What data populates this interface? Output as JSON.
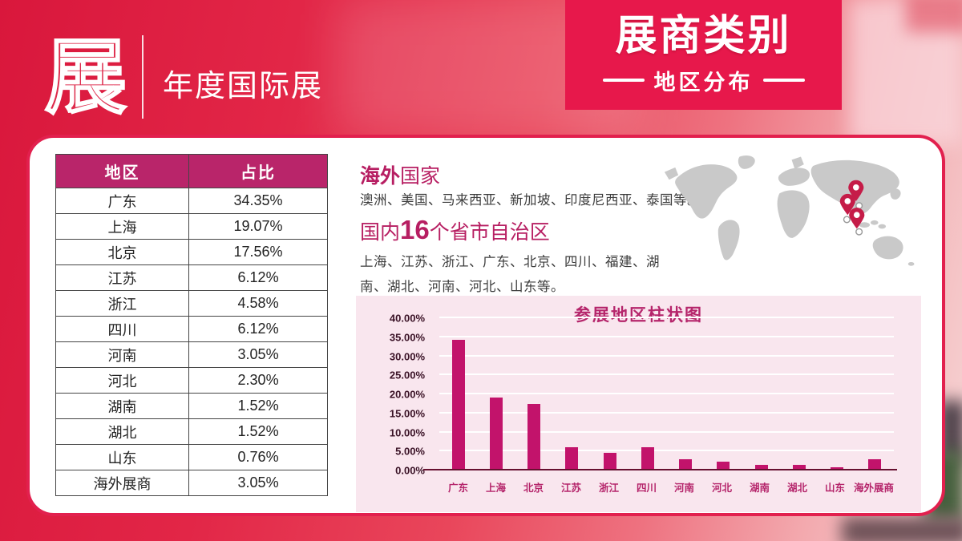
{
  "header": {
    "logo_char": "展",
    "event_title": "年度国际展"
  },
  "banner": {
    "title": "展商类别",
    "subtitle": "地区分布"
  },
  "table": {
    "columns": [
      "地区",
      "占比"
    ],
    "rows": [
      [
        "广东",
        "34.35%"
      ],
      [
        "上海",
        "19.07%"
      ],
      [
        "北京",
        "17.56%"
      ],
      [
        "江苏",
        "6.12%"
      ],
      [
        "浙江",
        "4.58%"
      ],
      [
        "四川",
        "6.12%"
      ],
      [
        "河南",
        "3.05%"
      ],
      [
        "河北",
        "2.30%"
      ],
      [
        "湖南",
        "1.52%"
      ],
      [
        "湖北",
        "1.52%"
      ],
      [
        "山东",
        "0.76%"
      ],
      [
        "海外展商",
        "3.05%"
      ]
    ]
  },
  "overseas": {
    "heading_accent": "海外",
    "heading_rest": "国家",
    "body": "澳洲、美国、马来西亚、新加坡、印度尼西亚、泰国等。"
  },
  "domestic": {
    "heading_prefix": "国内",
    "heading_count": "16",
    "heading_suffix": "个省市自治区",
    "body": "上海、江苏、浙江、广东、北京、四川、福建、湖南、湖北、河南、河北、山东等。"
  },
  "map": {
    "icon": "world-map",
    "pin_icon": "location-pin-icon"
  },
  "colors": {
    "accent_red": "#e7184b",
    "magenta_bar": "#c2136b",
    "table_header_bg": "#b9256a",
    "heading_magenta": "#b71e62",
    "chart_bg": "#f9e6ee",
    "map_gray": "#c9c9c9"
  },
  "chart_data": {
    "type": "bar",
    "title": "参展地区柱状图",
    "categories": [
      "广东",
      "上海",
      "北京",
      "江苏",
      "浙江",
      "四川",
      "河南",
      "河北",
      "湖南",
      "湖北",
      "山东",
      "海外展商"
    ],
    "values": [
      34.35,
      19.07,
      17.56,
      6.12,
      4.58,
      6.12,
      3.05,
      2.3,
      1.52,
      1.52,
      0.76,
      3.05
    ],
    "xlabel": "",
    "ylabel": "",
    "ylim": [
      0,
      40
    ],
    "grid": true,
    "legend": false,
    "yticks": [
      {
        "value": 0,
        "label": "0.00%"
      },
      {
        "value": 5,
        "label": "5.00%"
      },
      {
        "value": 10,
        "label": "10.00%"
      },
      {
        "value": 15,
        "label": "15.00%"
      },
      {
        "value": 20,
        "label": "20.00%"
      },
      {
        "value": 25,
        "label": "25.00%"
      },
      {
        "value": 30,
        "label": "30.00%"
      },
      {
        "value": 35,
        "label": "35.00%"
      },
      {
        "value": 40,
        "label": "40.00%"
      }
    ]
  }
}
